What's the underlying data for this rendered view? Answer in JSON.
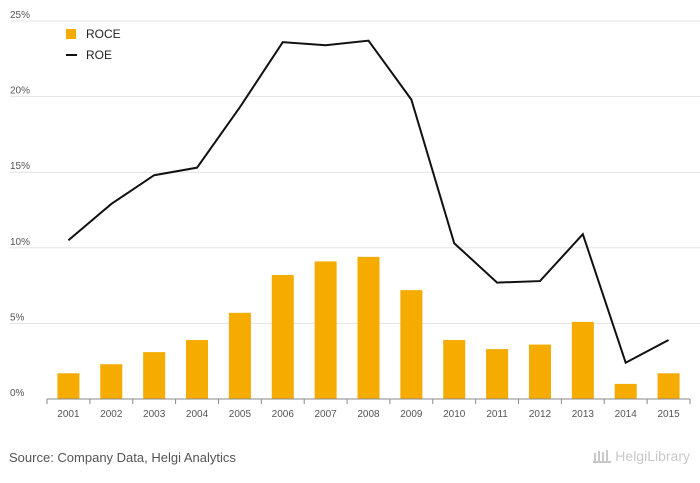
{
  "chart_data": {
    "type": "bar",
    "categories": [
      "2001",
      "2002",
      "2003",
      "2004",
      "2005",
      "2006",
      "2007",
      "2008",
      "2009",
      "2010",
      "2011",
      "2012",
      "2013",
      "2014",
      "2015"
    ],
    "series": [
      {
        "name": "ROCE",
        "type": "bar",
        "color": "#f5ab00",
        "values": [
          1.7,
          2.3,
          3.1,
          3.9,
          5.7,
          8.2,
          9.1,
          9.4,
          7.2,
          3.9,
          3.3,
          3.6,
          5.1,
          1.0,
          1.7
        ]
      },
      {
        "name": "ROE",
        "type": "line",
        "color": "#111111",
        "values": [
          10.5,
          12.9,
          14.8,
          15.3,
          19.3,
          23.6,
          23.4,
          23.7,
          19.8,
          10.3,
          7.7,
          7.8,
          10.9,
          2.4,
          3.9
        ]
      }
    ],
    "y_ticks": [
      "0%",
      "5%",
      "10%",
      "15%",
      "20%",
      "25%"
    ],
    "ylim": [
      0,
      25
    ],
    "grid": true,
    "legend_position": "top-left"
  },
  "footer": {
    "source": "Source: Company Data, Helgi Analytics",
    "brand": "HelgiLibrary"
  }
}
